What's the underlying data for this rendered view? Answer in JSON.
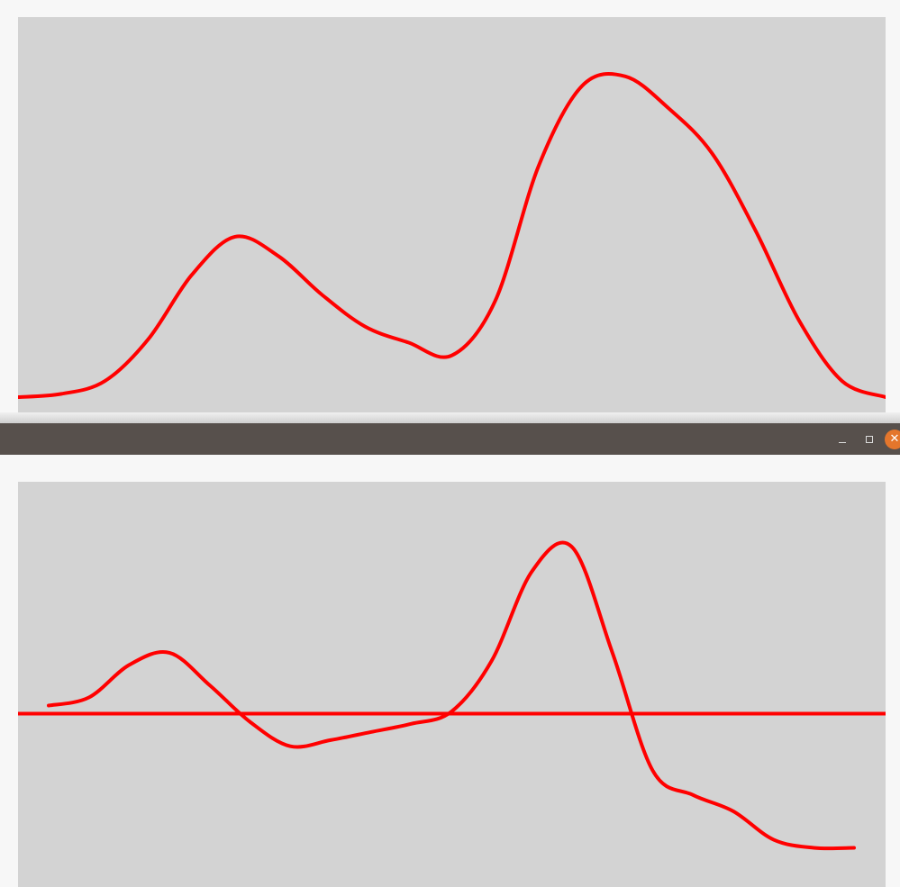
{
  "window": {
    "controls": {
      "minimize_icon": "minimize-icon",
      "maximize_icon": "maximize-icon",
      "close_icon": "close-icon",
      "close_glyph": "✕"
    },
    "accent_color": "#e4762c",
    "titlebar_color": "#57504c"
  },
  "chart_data": [
    {
      "type": "line",
      "x": [
        0,
        5,
        10,
        15,
        20,
        25,
        30,
        35,
        40,
        45,
        50,
        55,
        60,
        65,
        70,
        75,
        80,
        85,
        90,
        95,
        100
      ],
      "series": [
        {
          "color": "#ff0000",
          "values": [
            0.0,
            0.01,
            0.05,
            0.18,
            0.38,
            0.5,
            0.44,
            0.32,
            0.22,
            0.17,
            0.13,
            0.3,
            0.72,
            0.97,
            1.0,
            0.9,
            0.76,
            0.52,
            0.24,
            0.05,
            0.0
          ]
        }
      ],
      "ylim": [
        0,
        1.05
      ],
      "grid": false,
      "background": "#d3d3d3"
    },
    {
      "type": "line",
      "x": [
        0,
        5,
        10,
        15,
        20,
        25,
        30,
        35,
        40,
        45,
        50,
        55,
        60,
        65,
        70,
        75,
        80,
        85,
        90,
        95,
        100
      ],
      "series": [
        {
          "color": "#ff0000",
          "values": [
            0.04,
            0.08,
            0.24,
            0.3,
            0.14,
            -0.04,
            -0.16,
            -0.13,
            -0.09,
            -0.05,
            0.01,
            0.26,
            0.7,
            0.82,
            0.3,
            -0.28,
            -0.4,
            -0.48,
            -0.62,
            -0.66,
            -0.66
          ]
        }
      ],
      "baseline": 0,
      "ylim": [
        -0.72,
        0.92
      ],
      "grid": false,
      "background": "#d3d3d3"
    }
  ]
}
